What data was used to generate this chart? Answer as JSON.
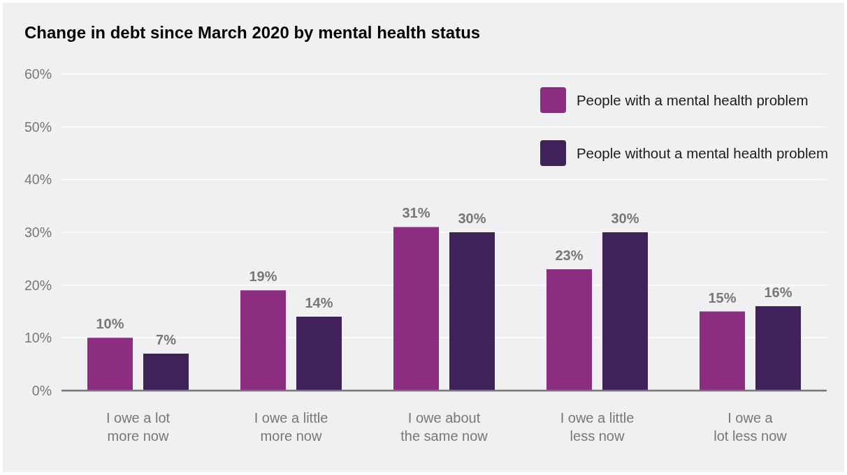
{
  "chart_data": {
    "type": "bar",
    "title": "Change in debt since March 2020 by mental health status",
    "categories": [
      "I owe a lot\nmore now",
      "I owe a little\nmore now",
      "I owe about\nthe same now",
      "I owe a little\nless now",
      "I owe a\nlot less now"
    ],
    "series": [
      {
        "name": "People with a mental health problem",
        "color": "#8c2d82",
        "values": [
          10,
          19,
          31,
          23,
          15
        ],
        "value_labels": [
          "10%",
          "19%",
          "31%",
          "23%",
          "15%"
        ]
      },
      {
        "name": "People without a mental health problem",
        "color": "#3f2259",
        "values": [
          7,
          14,
          30,
          30,
          16
        ],
        "value_labels": [
          "7%",
          "14%",
          "30%",
          "30%",
          "16%"
        ]
      }
    ],
    "ylim": [
      0,
      60
    ],
    "yticks": [
      {
        "value": 0,
        "label": "0%"
      },
      {
        "value": 10,
        "label": "10%"
      },
      {
        "value": 20,
        "label": "20%"
      },
      {
        "value": 30,
        "label": "30%"
      },
      {
        "value": 40,
        "label": "40%"
      },
      {
        "value": 50,
        "label": "50%"
      },
      {
        "value": 60,
        "label": "60%"
      }
    ],
    "grid": "y",
    "legend": "top right"
  }
}
